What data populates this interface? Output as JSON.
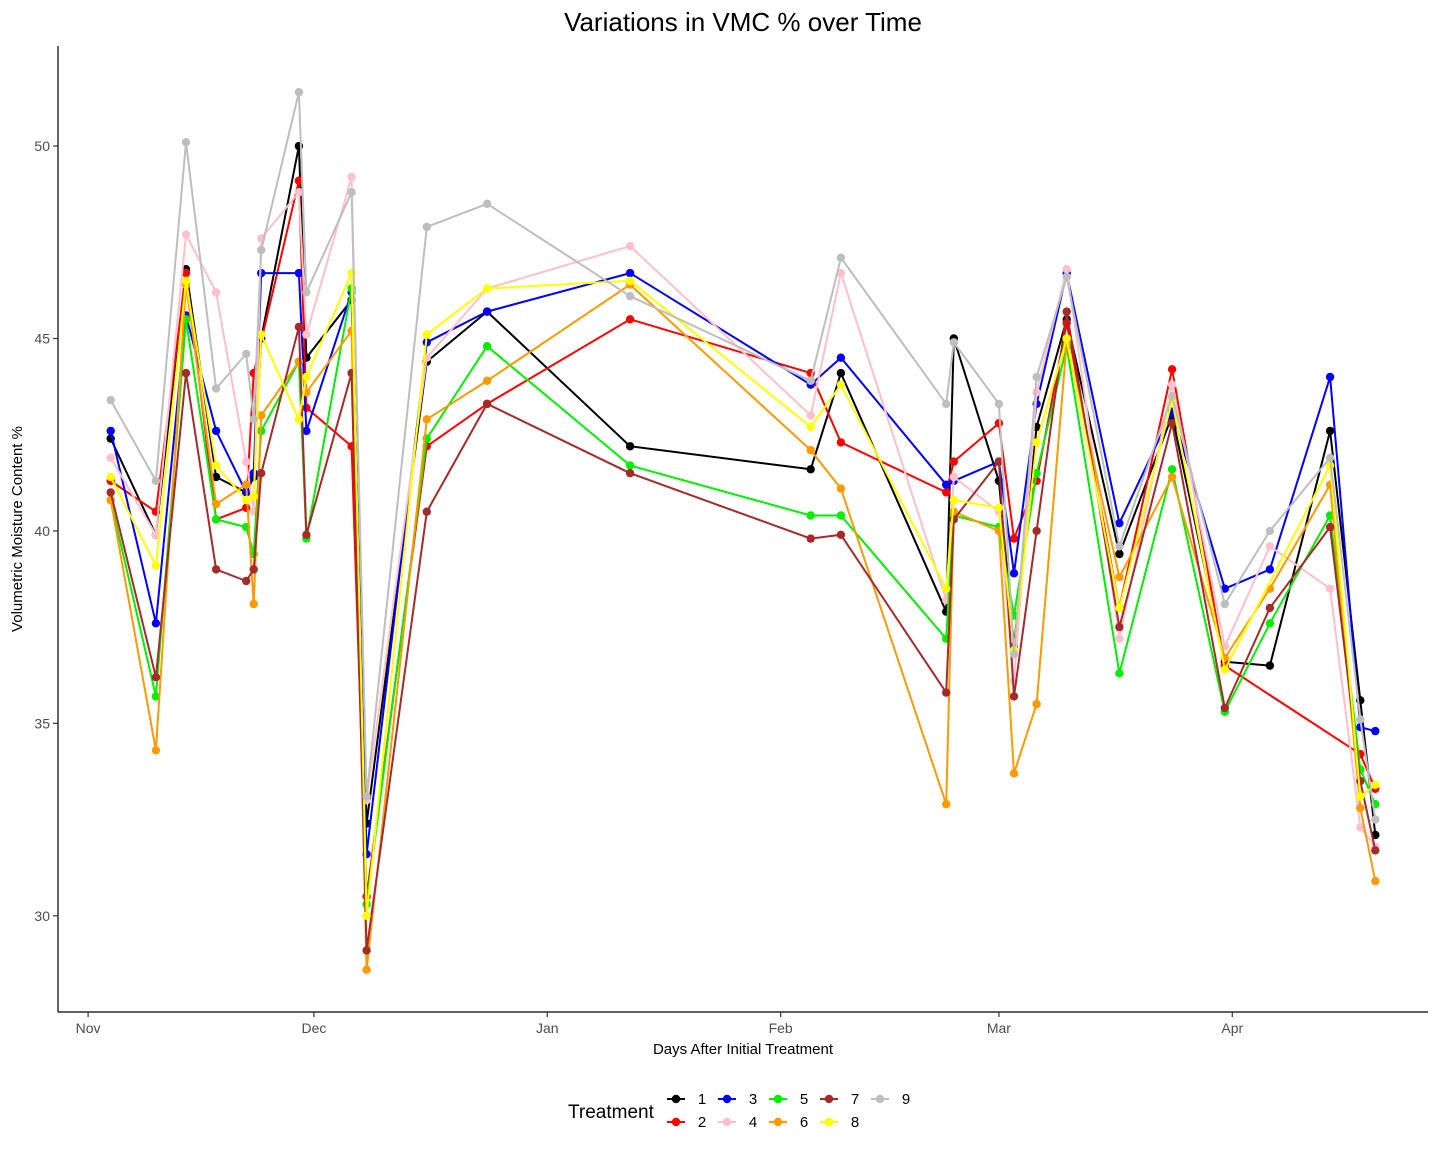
{
  "chart_data": {
    "type": "line",
    "title": "Variations in VMC % over Time",
    "xlabel": "Days After Initial Treatment",
    "ylabel": "Volumetric Moisture Content %",
    "x_ticks": [
      {
        "label": "Nov",
        "date": "2023-11-01"
      },
      {
        "label": "Dec",
        "date": "2023-12-01"
      },
      {
        "label": "Jan",
        "date": "2024-01-01"
      },
      {
        "label": "Feb",
        "date": "2024-02-01"
      },
      {
        "label": "Mar",
        "date": "2024-03-01"
      },
      {
        "label": "Apr",
        "date": "2024-04-01"
      }
    ],
    "xlim": [
      "2023-10-28",
      "2024-04-27"
    ],
    "ylim": [
      27.5,
      52.6
    ],
    "y_ticks": [
      30,
      35,
      40,
      45,
      50
    ],
    "grid": false,
    "legend": {
      "title": "Treatment",
      "position": "bottom"
    },
    "dates": [
      "2023-11-04",
      "2023-11-10",
      "2023-11-14",
      "2023-11-18",
      "2023-11-22",
      "2023-11-23",
      "2023-11-24",
      "2023-11-29",
      "2023-11-30",
      "2023-12-06",
      "2023-12-08",
      "2023-12-16",
      "2023-12-24",
      "2024-01-12",
      "2024-02-05",
      "2024-02-09",
      "2024-02-23",
      "2024-02-24",
      "2024-03-01",
      "2024-03-03",
      "2024-03-06",
      "2024-03-10",
      "2024-03-17",
      "2024-03-24",
      "2024-03-31",
      "2024-04-06",
      "2024-04-14",
      "2024-04-18",
      "2024-04-20"
    ],
    "series": [
      {
        "name": "1",
        "color": "#000000",
        "values": [
          42.4,
          39.9,
          46.8,
          41.4,
          41.0,
          41.4,
          45.0,
          50.0,
          44.5,
          46.0,
          32.4,
          44.4,
          45.7,
          42.2,
          41.6,
          44.1,
          37.9,
          45.0,
          41.3,
          37.0,
          42.7,
          45.5,
          39.4,
          43.0,
          36.6,
          36.5,
          42.6,
          35.6,
          32.1
        ]
      },
      {
        "name": "2",
        "color": "#ff0000",
        "values": [
          41.3,
          40.5,
          46.7,
          40.3,
          40.6,
          44.1,
          null,
          49.1,
          43.2,
          42.2,
          30.5,
          42.2,
          43.3,
          45.5,
          44.1,
          42.3,
          41.0,
          41.8,
          42.8,
          39.8,
          41.3,
          45.4,
          38.0,
          44.2,
          36.5,
          null,
          null,
          34.2,
          33.3
        ]
      },
      {
        "name": "3",
        "color": "#0000ff",
        "values": [
          42.6,
          37.6,
          45.6,
          42.6,
          41.0,
          41.5,
          46.7,
          46.7,
          42.6,
          46.2,
          31.6,
          44.9,
          45.7,
          46.7,
          43.8,
          44.5,
          41.2,
          41.3,
          41.8,
          38.9,
          43.3,
          46.7,
          40.2,
          43.1,
          38.5,
          39.0,
          44.0,
          34.9,
          34.8
        ]
      },
      {
        "name": "4",
        "color": "#ffc0cb",
        "values": [
          41.9,
          39.9,
          47.7,
          46.2,
          41.8,
          40.5,
          47.6,
          48.8,
          45.1,
          49.2,
          33.0,
          44.5,
          46.3,
          47.4,
          43.0,
          46.7,
          38.2,
          41.4,
          40.5,
          36.1,
          43.6,
          46.8,
          37.2,
          43.8,
          37.0,
          39.6,
          38.5,
          32.3,
          31.8
        ]
      },
      {
        "name": "5",
        "color": "#00ee00",
        "values": [
          40.8,
          35.7,
          45.5,
          40.3,
          40.1,
          39.4,
          42.6,
          44.4,
          39.8,
          46.3,
          30.3,
          42.4,
          44.8,
          41.7,
          40.4,
          40.4,
          37.2,
          40.4,
          40.1,
          37.8,
          41.5,
          44.8,
          36.3,
          41.6,
          35.3,
          37.6,
          40.4,
          33.8,
          32.9
        ]
      },
      {
        "name": "6",
        "color": "#ff9900",
        "values": [
          40.8,
          34.3,
          46.4,
          40.7,
          41.2,
          38.1,
          43.0,
          44.4,
          43.6,
          45.2,
          28.6,
          42.9,
          43.9,
          46.4,
          42.1,
          41.1,
          32.9,
          40.5,
          40.0,
          33.7,
          35.5,
          44.9,
          38.8,
          41.4,
          36.7,
          38.5,
          41.2,
          32.8,
          30.9
        ]
      },
      {
        "name": "7",
        "color": "#a52a2a",
        "values": [
          41.0,
          36.2,
          44.1,
          39.0,
          38.7,
          39.0,
          41.5,
          45.3,
          39.9,
          44.1,
          29.1,
          40.5,
          43.3,
          41.5,
          39.8,
          39.9,
          35.8,
          40.3,
          41.8,
          35.7,
          40.0,
          45.7,
          37.5,
          42.8,
          35.4,
          38.0,
          40.1,
          33.5,
          31.7
        ]
      },
      {
        "name": "8",
        "color": "#ffff00",
        "values": [
          41.4,
          39.1,
          46.5,
          41.7,
          40.8,
          40.9,
          45.1,
          42.9,
          44.0,
          46.7,
          30.0,
          45.1,
          46.3,
          46.5,
          42.7,
          43.8,
          38.5,
          40.8,
          40.6,
          36.9,
          42.3,
          45.0,
          38.0,
          43.4,
          36.4,
          null,
          41.7,
          33.1,
          33.4
        ]
      },
      {
        "name": "9",
        "color": "#bebebe",
        "values": [
          43.4,
          41.3,
          50.1,
          43.7,
          44.6,
          42.9,
          47.3,
          51.4,
          46.2,
          48.8,
          33.1,
          47.9,
          48.5,
          46.1,
          43.9,
          47.1,
          43.3,
          44.9,
          43.3,
          36.8,
          44.0,
          46.6,
          39.6,
          43.5,
          38.1,
          40.0,
          41.9,
          35.1,
          32.5
        ]
      }
    ]
  }
}
